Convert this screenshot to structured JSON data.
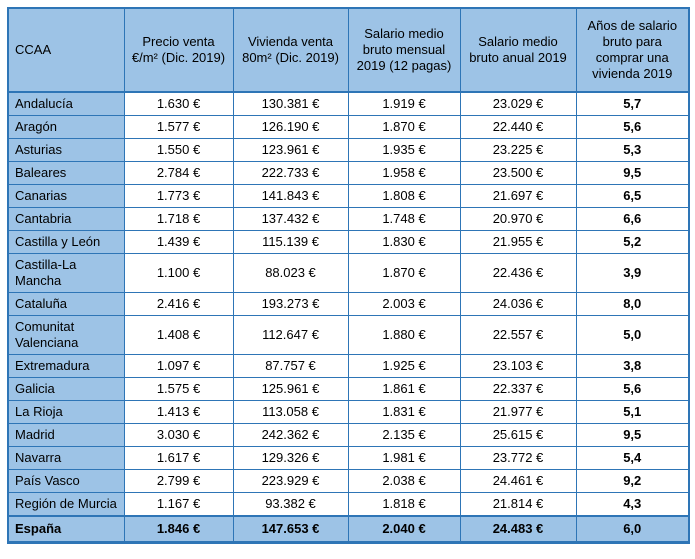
{
  "chart_data": {
    "type": "table",
    "columns": [
      "CCAA",
      "Precio venta €/m² (Dic. 2019)",
      "Vivienda venta 80m² (Dic. 2019)",
      "Salario medio bruto mensual 2019 (12 pagas)",
      "Salario medio bruto anual 2019",
      "Años de salario bruto para comprar una vivienda 2019"
    ],
    "rows": [
      {
        "ccaa": "Andalucía",
        "values": [
          "1.630 €",
          "130.381 €",
          "1.919 €",
          "23.029 €",
          "5,7"
        ]
      },
      {
        "ccaa": "Aragón",
        "values": [
          "1.577 €",
          "126.190 €",
          "1.870 €",
          "22.440 €",
          "5,6"
        ]
      },
      {
        "ccaa": "Asturias",
        "values": [
          "1.550 €",
          "123.961 €",
          "1.935 €",
          "23.225 €",
          "5,3"
        ]
      },
      {
        "ccaa": "Baleares",
        "values": [
          "2.784 €",
          "222.733 €",
          "1.958 €",
          "23.500 €",
          "9,5"
        ]
      },
      {
        "ccaa": "Canarias",
        "values": [
          "1.773 €",
          "141.843 €",
          "1.808 €",
          "21.697 €",
          "6,5"
        ]
      },
      {
        "ccaa": "Cantabria",
        "values": [
          "1.718 €",
          "137.432 €",
          "1.748 €",
          "20.970 €",
          "6,6"
        ]
      },
      {
        "ccaa": "Castilla y León",
        "values": [
          "1.439 €",
          "115.139 €",
          "1.830 €",
          "21.955 €",
          "5,2"
        ]
      },
      {
        "ccaa": "Castilla-La Mancha",
        "values": [
          "1.100 €",
          "88.023 €",
          "1.870 €",
          "22.436 €",
          "3,9"
        ]
      },
      {
        "ccaa": "Cataluña",
        "values": [
          "2.416 €",
          "193.273 €",
          "2.003 €",
          "24.036 €",
          "8,0"
        ]
      },
      {
        "ccaa": "Comunitat Valenciana",
        "values": [
          "1.408 €",
          "112.647 €",
          "1.880 €",
          "22.557 €",
          "5,0"
        ]
      },
      {
        "ccaa": "Extremadura",
        "values": [
          "1.097 €",
          "87.757 €",
          "1.925 €",
          "23.103 €",
          "3,8"
        ]
      },
      {
        "ccaa": "Galicia",
        "values": [
          "1.575 €",
          "125.961 €",
          "1.861 €",
          "22.337 €",
          "5,6"
        ]
      },
      {
        "ccaa": "La Rioja",
        "values": [
          "1.413 €",
          "113.058 €",
          "1.831 €",
          "21.977 €",
          "5,1"
        ]
      },
      {
        "ccaa": "Madrid",
        "values": [
          "3.030 €",
          "242.362 €",
          "2.135 €",
          "25.615 €",
          "9,5"
        ]
      },
      {
        "ccaa": "Navarra",
        "values": [
          "1.617 €",
          "129.326 €",
          "1.981 €",
          "23.772 €",
          "5,4"
        ]
      },
      {
        "ccaa": "País Vasco",
        "values": [
          "2.799 €",
          "223.929 €",
          "2.038 €",
          "24.461 €",
          "9,2"
        ]
      },
      {
        "ccaa": "Región de Murcia",
        "values": [
          "1.167 €",
          "93.382 €",
          "1.818 €",
          "21.814 €",
          "4,3"
        ]
      }
    ],
    "total_row": {
      "ccaa": "España",
      "values": [
        "1.846 €",
        "147.653 €",
        "2.040 €",
        "24.483 €",
        "6,0"
      ]
    }
  },
  "colors": {
    "header_fill": "#9DC3E6",
    "border": "#2E75B6",
    "text": "#000000",
    "cell_fill": "#FFFFFF"
  }
}
